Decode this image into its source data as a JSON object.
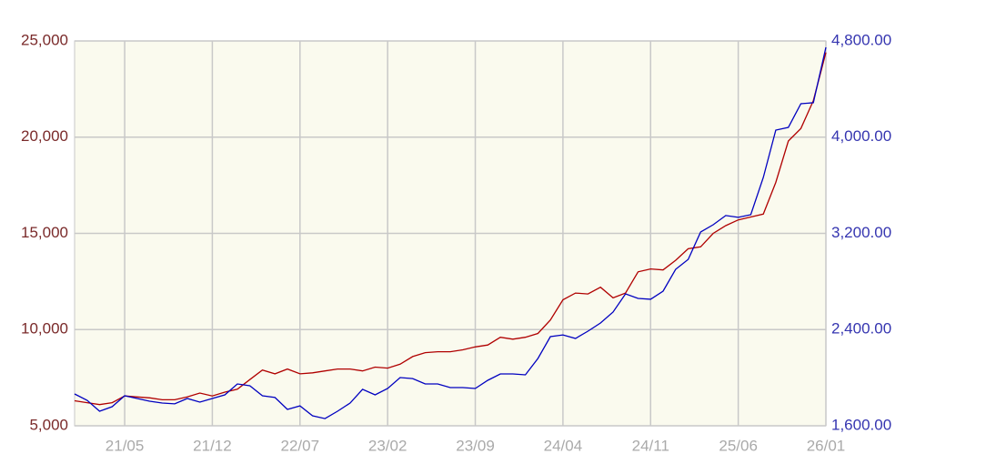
{
  "chart_data": {
    "type": "line",
    "categories": [
      null,
      null,
      null,
      null,
      "21/05",
      null,
      null,
      null,
      null,
      null,
      null,
      "21/12",
      null,
      null,
      null,
      null,
      null,
      null,
      "22/07",
      null,
      null,
      null,
      null,
      null,
      null,
      "23/02",
      null,
      null,
      null,
      null,
      null,
      null,
      "23/09",
      null,
      null,
      null,
      null,
      null,
      null,
      "24/04",
      null,
      null,
      null,
      null,
      null,
      null,
      "24/11",
      null,
      null,
      null,
      null,
      null,
      null,
      "25/06",
      null,
      null,
      null,
      null,
      null,
      null,
      "26/01"
    ],
    "series": [
      {
        "color": "#b00000",
        "values": [
          6300,
          6200,
          6100,
          6200,
          6550,
          6500,
          6450,
          6350,
          6350,
          6500,
          6700,
          6550,
          6750,
          6900,
          7400,
          7900,
          7700,
          7950,
          7700,
          7750,
          7850,
          7950,
          7950,
          7850,
          8050,
          8000,
          8200,
          8600,
          8800,
          8850,
          8850,
          8950,
          9100,
          9200,
          9600,
          9500,
          9600,
          9800,
          10500,
          11550,
          11900,
          11850,
          12200,
          11650,
          11900,
          13000,
          13150,
          13100,
          13600,
          14200,
          14300,
          15000,
          15400,
          15700,
          15850,
          16000,
          17650,
          19800,
          20450,
          21900,
          24400
        ]
      },
      {
        "color": "#0000c0",
        "axis": "y2",
        "values": [
          1865,
          1812,
          1721,
          1759,
          1850,
          1827,
          1804,
          1789,
          1782,
          1827,
          1797,
          1827,
          1857,
          1948,
          1933,
          1850,
          1835,
          1736,
          1766,
          1683,
          1660,
          1721,
          1789,
          1903,
          1857,
          1910,
          2001,
          1993,
          1948,
          1948,
          1918,
          1918,
          1910,
          1978,
          2031,
          2031,
          2024,
          2160,
          2341,
          2356,
          2326,
          2387,
          2455,
          2546,
          2697,
          2659,
          2652,
          2720,
          2901,
          2984,
          3211,
          3272,
          3348,
          3333,
          3355,
          3665,
          4059,
          4081,
          4278,
          4286,
          4747
        ]
      }
    ],
    "ylim": [
      5000,
      25000
    ],
    "yticks": [
      {
        "value": 5000,
        "label": "5,000"
      },
      {
        "value": 10000,
        "label": "10,000"
      },
      {
        "value": 15000,
        "label": "15,000"
      },
      {
        "value": 20000,
        "label": "20,000"
      },
      {
        "value": 25000,
        "label": "25,000"
      }
    ],
    "y2lim": [
      1600,
      4800
    ],
    "y2ticks": [
      {
        "value": 1600,
        "label": "1,600.00"
      },
      {
        "value": 2400,
        "label": "2,400.00"
      },
      {
        "value": 3200,
        "label": "3,200.00"
      },
      {
        "value": 4000,
        "label": "4,000.00"
      },
      {
        "value": 4800,
        "label": "4,800.00"
      }
    ],
    "grid": true
  }
}
